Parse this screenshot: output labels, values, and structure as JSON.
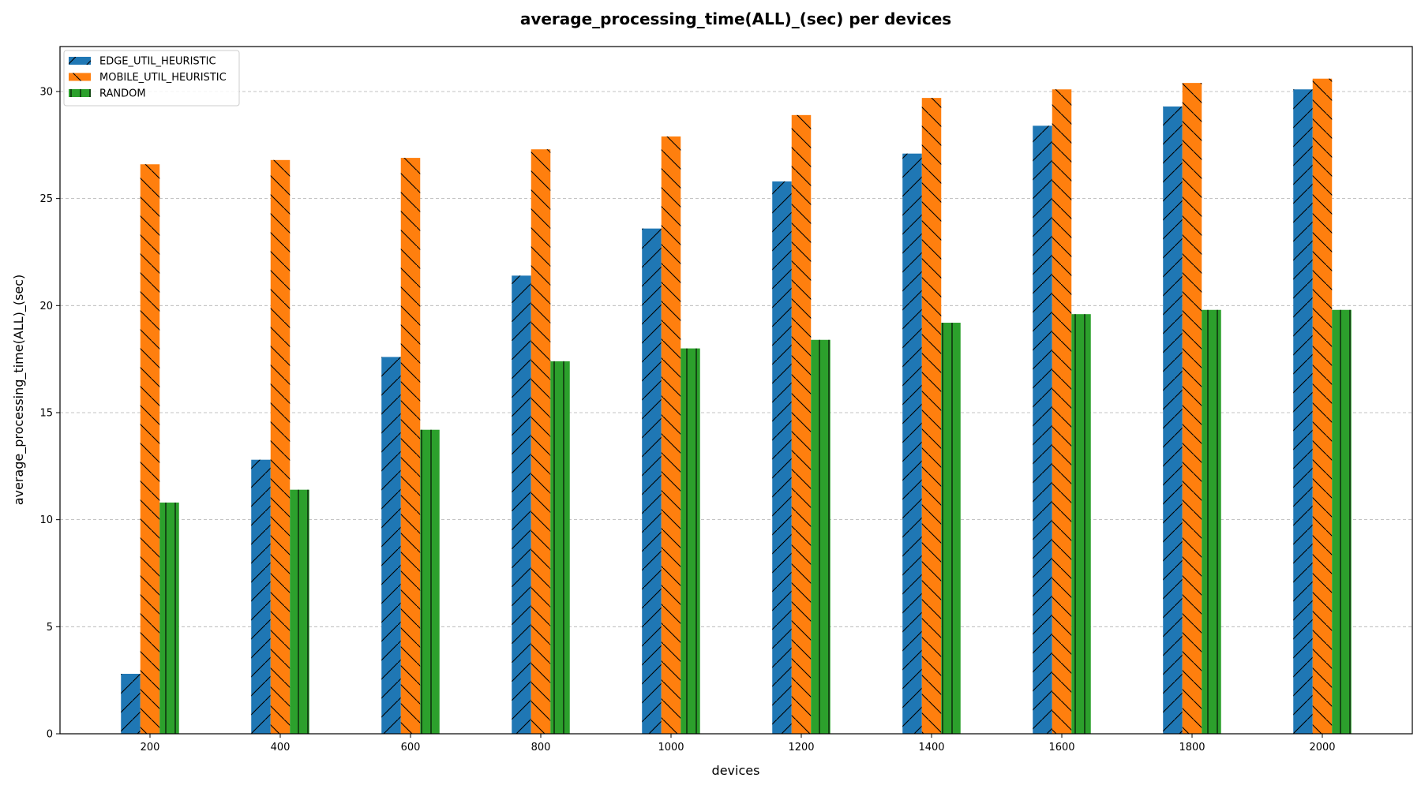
{
  "chart_data": {
    "type": "bar",
    "title": "average_processing_time(ALL)_(sec) per devices",
    "xlabel": "devices",
    "ylabel": "average_processing_time(ALL)_(sec)",
    "categories": [
      "200",
      "400",
      "600",
      "800",
      "1000",
      "1200",
      "1400",
      "1600",
      "1800",
      "2000"
    ],
    "ylim": [
      0,
      32.1
    ],
    "yticks": [
      0,
      5,
      10,
      15,
      20,
      25,
      30
    ],
    "grid": "y-dashed",
    "legend_position": "top-left",
    "series": [
      {
        "name": "EDGE_UTIL_HEURISTIC",
        "color": "#1f77b4",
        "hatch": "forward-slash",
        "values": [
          2.8,
          12.8,
          17.6,
          21.4,
          23.6,
          25.8,
          27.1,
          28.4,
          29.3,
          30.1
        ]
      },
      {
        "name": "MOBILE_UTIL_HEURISTIC",
        "color": "#ff7f0e",
        "hatch": "back-slash",
        "values": [
          26.6,
          26.8,
          26.9,
          27.3,
          27.9,
          28.9,
          29.7,
          30.1,
          30.4,
          30.6
        ]
      },
      {
        "name": "RANDOM",
        "color": "#2ca02c",
        "hatch": "vertical",
        "values": [
          10.8,
          11.4,
          14.2,
          17.4,
          18.0,
          18.4,
          19.2,
          19.6,
          19.8,
          19.8
        ]
      }
    ]
  }
}
